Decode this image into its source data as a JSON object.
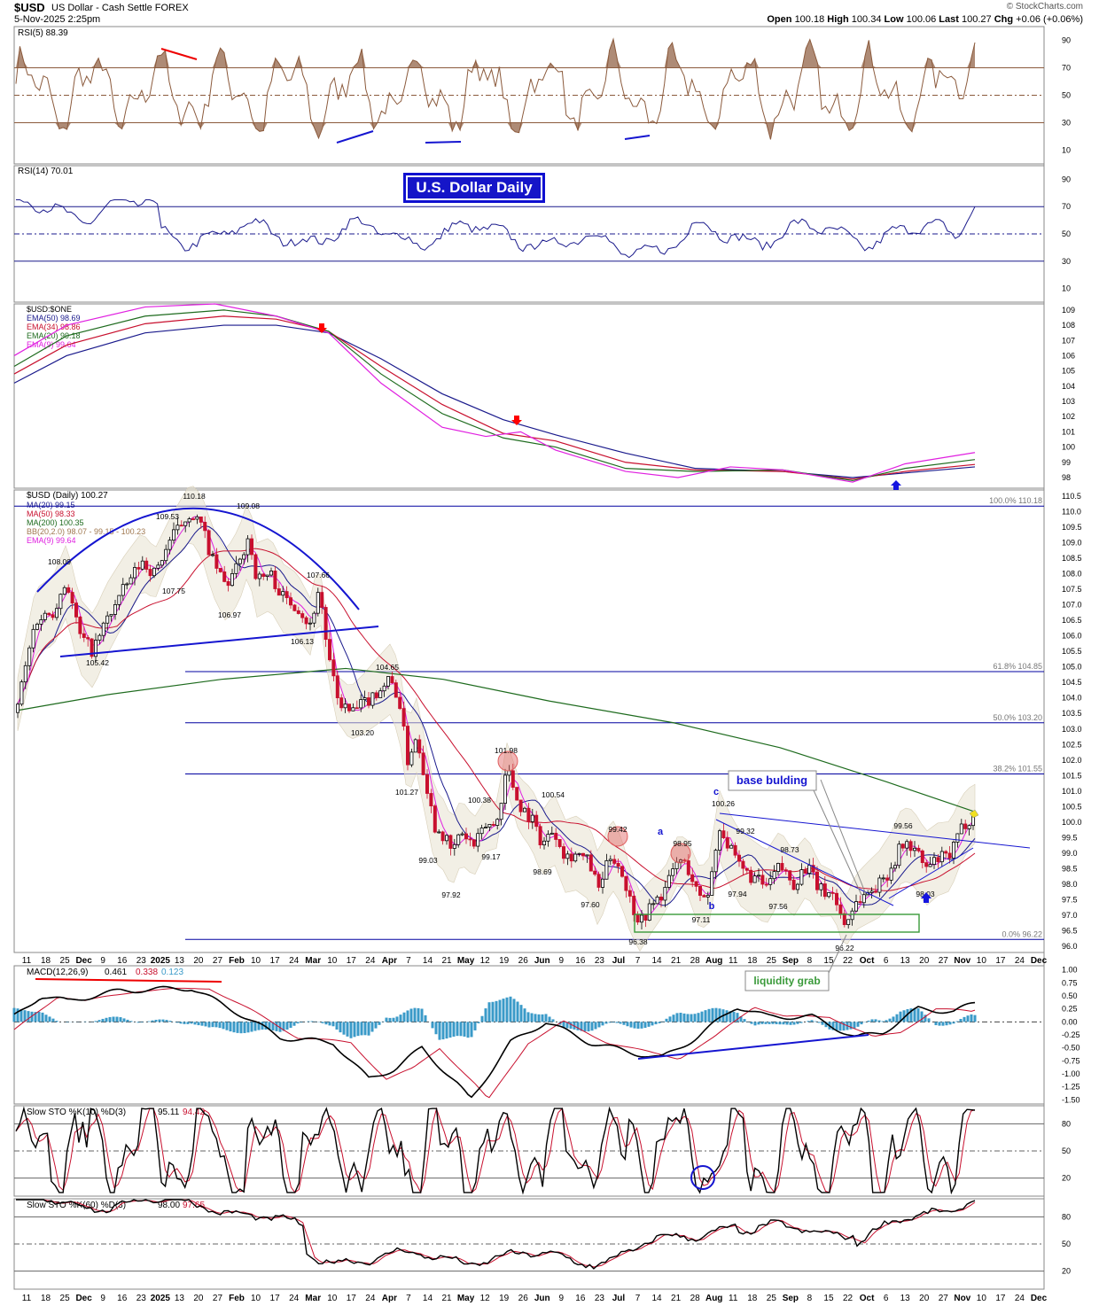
{
  "header": {
    "symbol": "$USD",
    "name": "US Dollar - Cash Settle",
    "exchange": "FOREX",
    "datetime": "5-Nov-2025 2:25pm",
    "brand": "© StockCharts.com",
    "ohlc": {
      "open_label": "Open",
      "open": "100.18",
      "high_label": "High",
      "high": "100.34",
      "low_label": "Low",
      "low": "100.06",
      "last_label": "Last",
      "last": "100.27",
      "chg_label": "Chg",
      "chg": "+0.06 (+0.06%)"
    }
  },
  "banner": "U.S. Dollar Daily",
  "colors": {
    "rsi5": "#8b5a3c",
    "rsi14": "#1a1a8c",
    "up": "#000000",
    "down": "#c8102e",
    "ma20": "#1a1a8c",
    "ma50": "#c8102e",
    "ma200": "#1e6b1e",
    "ema9": "#e020e0",
    "fib": "#0000a0",
    "macd_hist": "#3a9ac8"
  },
  "x_axis": [
    "11",
    "18",
    "25",
    "Dec",
    "9",
    "16",
    "23",
    "2025",
    "13",
    "20",
    "27",
    "Feb",
    "10",
    "17",
    "24",
    "Mar",
    "10",
    "17",
    "24",
    "Apr",
    "7",
    "14",
    "21",
    "May",
    "12",
    "19",
    "26",
    "Jun",
    "9",
    "16",
    "23",
    "Jul",
    "7",
    "14",
    "21",
    "28",
    "Aug",
    "11",
    "18",
    "25",
    "Sep",
    "8",
    "15",
    "22",
    "Oct",
    "6",
    "13",
    "20",
    "27",
    "Nov",
    "10",
    "17",
    "24",
    "Dec"
  ],
  "chart_data": [
    {
      "type": "line",
      "panel": "RSI(5)",
      "title": "RSI(5) 88.39",
      "yticks": [
        "90",
        "70",
        "50",
        "30",
        "10"
      ],
      "ylim": [
        0,
        100
      ],
      "levels": [
        70,
        50,
        30
      ],
      "series": [
        {
          "name": "RSI(5)",
          "last": 88.39
        }
      ]
    },
    {
      "type": "line",
      "panel": "RSI(14)",
      "title": "RSI(14) 70.01",
      "yticks": [
        "90",
        "70",
        "50",
        "30",
        "10"
      ],
      "ylim": [
        0,
        100
      ],
      "levels": [
        70,
        50,
        30
      ],
      "series": [
        {
          "name": "RSI(14)",
          "last": 70.01
        }
      ]
    },
    {
      "type": "line",
      "panel": "$USD:$ONE",
      "title": "$USD:$ONE",
      "yticks": [
        "109",
        "108",
        "107",
        "106",
        "105",
        "104",
        "103",
        "102",
        "101",
        "100",
        "99",
        "98"
      ],
      "ylim": [
        97.3,
        109.4
      ],
      "legend": [
        "EMA(50) 98.69",
        "EMA(34) 98.86",
        "EMA(20) 99.18",
        "EMA(9) 99.64"
      ],
      "series": [
        {
          "name": "EMA(50)",
          "points": [
            [
              0,
              104.2
            ],
            [
              60,
              106
            ],
            [
              150,
              107.5
            ],
            [
              240,
              108
            ],
            [
              300,
              108
            ],
            [
              360,
              107.5
            ],
            [
              420,
              105.8
            ],
            [
              490,
              103.5
            ],
            [
              560,
              101.8
            ],
            [
              620,
              100.8
            ],
            [
              700,
              99.6
            ],
            [
              780,
              98.6
            ],
            [
              880,
              98.4
            ],
            [
              960,
              98.0
            ],
            [
              1020,
              98.3
            ],
            [
              1100,
              98.7
            ]
          ]
        },
        {
          "name": "EMA(34)",
          "points": [
            [
              0,
              104.8
            ],
            [
              60,
              106.7
            ],
            [
              150,
              108.1
            ],
            [
              240,
              108.6
            ],
            [
              300,
              108.4
            ],
            [
              360,
              107.6
            ],
            [
              420,
              105.3
            ],
            [
              490,
              102.8
            ],
            [
              560,
              100.9
            ],
            [
              620,
              100.4
            ],
            [
              700,
              99.0
            ],
            [
              780,
              98.5
            ],
            [
              880,
              98.4
            ],
            [
              960,
              97.9
            ],
            [
              1020,
              98.4
            ],
            [
              1100,
              98.86
            ]
          ]
        },
        {
          "name": "EMA(20)",
          "points": [
            [
              0,
              105.3
            ],
            [
              60,
              107.3
            ],
            [
              150,
              108.6
            ],
            [
              240,
              109.0
            ],
            [
              300,
              108.6
            ],
            [
              360,
              107.6
            ],
            [
              420,
              104.8
            ],
            [
              490,
              102.2
            ],
            [
              560,
              100.6
            ],
            [
              620,
              100.0
            ],
            [
              700,
              98.6
            ],
            [
              780,
              98.4
            ],
            [
              880,
              98.5
            ],
            [
              960,
              97.8
            ],
            [
              1020,
              98.6
            ],
            [
              1100,
              99.18
            ]
          ]
        },
        {
          "name": "EMA(9)",
          "points": [
            [
              0,
              106.0
            ],
            [
              60,
              108.0
            ],
            [
              150,
              109.2
            ],
            [
              230,
              109.4
            ],
            [
              300,
              108.6
            ],
            [
              360,
              107.5
            ],
            [
              420,
              104.2
            ],
            [
              490,
              101.3
            ],
            [
              540,
              100.7
            ],
            [
              580,
              101.0
            ],
            [
              620,
              99.8
            ],
            [
              700,
              98.4
            ],
            [
              760,
              98.0
            ],
            [
              820,
              98.7
            ],
            [
              880,
              98.5
            ],
            [
              960,
              97.7
            ],
            [
              1020,
              98.9
            ],
            [
              1100,
              99.64
            ]
          ]
        }
      ],
      "markers": [
        "down",
        "down",
        "up"
      ]
    },
    {
      "type": "candlestick",
      "panel": "$USD (Daily)",
      "title": "$USD (Daily) 100.27",
      "legend": [
        "MA(20) 99.15",
        "MA(50) 98.33",
        "MA(200) 100.35",
        "BB(20,2.0) 98.07 - 99.15 - 100.23",
        "EMA(9) 99.64"
      ],
      "yticks": [
        "110.5",
        "110.0",
        "109.5",
        "109.0",
        "108.5",
        "108.0",
        "107.5",
        "107.0",
        "106.5",
        "106.0",
        "105.5",
        "105.0",
        "104.5",
        "104.0",
        "103.5",
        "103.0",
        "102.5",
        "102.0",
        "101.5",
        "101.0",
        "100.5",
        "100.0",
        "99.5",
        "99.0",
        "98.5",
        "98.0",
        "97.5",
        "97.0",
        "96.5",
        "96.0"
      ],
      "ylim": [
        95.8,
        110.7
      ],
      "fib_levels": [
        {
          "label": "100.0% 110.18",
          "value": 110.18
        },
        {
          "label": "61.8% 104.85",
          "value": 104.85
        },
        {
          "label": "50.0% 103.20",
          "value": 103.2
        },
        {
          "label": "38.2% 101.55",
          "value": 101.55
        },
        {
          "label": "0.0% 96.22",
          "value": 96.22
        }
      ],
      "price_labels": [
        "110.18",
        "109.53",
        "109.08",
        "108.09",
        "107.75",
        "106.97",
        "107.66",
        "106.13",
        "105.42",
        "104.65",
        "103.20",
        "101.98",
        "101.27",
        "100.38",
        "100.54",
        "99.03",
        "99.17",
        "97.92",
        "98.69",
        "97.60",
        "99.42",
        "98.95",
        "97.11",
        "96.38",
        "100.26",
        "99.32",
        "97.94",
        "98.73",
        "97.56",
        "99.56",
        "98.03",
        "96.22"
      ],
      "wave_labels": [
        "a",
        "b",
        "c"
      ],
      "annotations": [
        "base bulding",
        "liquidity grab"
      ],
      "close_path": [
        [
          20,
          103.8
        ],
        [
          40,
          106.5
        ],
        [
          60,
          106.8
        ],
        [
          75,
          107.8
        ],
        [
          90,
          106.0
        ],
        [
          105,
          105.5
        ],
        [
          120,
          106.5
        ],
        [
          140,
          107.5
        ],
        [
          160,
          108.4
        ],
        [
          175,
          108.0
        ],
        [
          190,
          109.0
        ],
        [
          205,
          109.6
        ],
        [
          215,
          110.0
        ],
        [
          228,
          109.5
        ],
        [
          240,
          108.4
        ],
        [
          255,
          107.6
        ],
        [
          270,
          108.3
        ],
        [
          280,
          109.2
        ],
        [
          290,
          107.8
        ],
        [
          305,
          108.0
        ],
        [
          320,
          107.2
        ],
        [
          335,
          107.0
        ],
        [
          350,
          106.3
        ],
        [
          360,
          107.6
        ],
        [
          370,
          105.4
        ],
        [
          380,
          104.0
        ],
        [
          395,
          103.5
        ],
        [
          410,
          103.8
        ],
        [
          425,
          104.2
        ],
        [
          440,
          104.6
        ],
        [
          450,
          104.0
        ],
        [
          460,
          102.0
        ],
        [
          470,
          102.8
        ],
        [
          480,
          101.4
        ],
        [
          490,
          99.9
        ],
        [
          500,
          99.6
        ],
        [
          510,
          99.0
        ],
        [
          520,
          99.7
        ],
        [
          535,
          99.2
        ],
        [
          548,
          99.9
        ],
        [
          560,
          99.9
        ],
        [
          572,
          101.8
        ],
        [
          585,
          100.6
        ],
        [
          600,
          100.1
        ],
        [
          612,
          99.3
        ],
        [
          625,
          99.8
        ],
        [
          638,
          98.9
        ],
        [
          650,
          99.0
        ],
        [
          665,
          98.7
        ],
        [
          675,
          97.8
        ],
        [
          690,
          99.0
        ],
        [
          700,
          98.5
        ],
        [
          712,
          97.4
        ],
        [
          722,
          96.8
        ],
        [
          735,
          97.3
        ],
        [
          750,
          97.8
        ],
        [
          765,
          98.8
        ],
        [
          775,
          98.6
        ],
        [
          790,
          97.5
        ],
        [
          800,
          97.8
        ],
        [
          812,
          99.9
        ],
        [
          822,
          99.2
        ],
        [
          835,
          98.5
        ],
        [
          850,
          98.2
        ],
        [
          865,
          97.9
        ],
        [
          880,
          98.6
        ],
        [
          895,
          98.0
        ],
        [
          910,
          98.6
        ],
        [
          925,
          97.8
        ],
        [
          940,
          97.7
        ],
        [
          953,
          96.7
        ],
        [
          965,
          97.4
        ],
        [
          978,
          97.7
        ],
        [
          992,
          98.0
        ],
        [
          1005,
          98.5
        ],
        [
          1018,
          99.3
        ],
        [
          1030,
          99.2
        ],
        [
          1045,
          98.5
        ],
        [
          1058,
          98.8
        ],
        [
          1072,
          98.9
        ],
        [
          1085,
          99.8
        ],
        [
          1098,
          100.27
        ]
      ],
      "last": 100.27
    },
    {
      "type": "line",
      "panel": "MACD",
      "title": "MACD(12,26,9) 0.461, 0.338, 0.123",
      "legend": [
        "0.461",
        "0.338",
        "0.123"
      ],
      "yticks": [
        "1.00",
        "0.75",
        "0.50",
        "0.25",
        "0.00",
        "-0.25",
        "-0.50",
        "-0.75",
        "-1.00",
        "-1.25",
        "-1.50"
      ],
      "ylim": [
        -1.58,
        1.08
      ],
      "series": [
        {
          "name": "MACD",
          "last": 0.461
        },
        {
          "name": "Signal",
          "last": 0.338
        },
        {
          "name": "Histogram",
          "last": 0.123
        }
      ]
    },
    {
      "type": "line",
      "panel": "Slow STO 10",
      "title": "Slow STO %K(10) %D(3) 95.11, 94.42",
      "legend": [
        "95.11",
        "94.42"
      ],
      "yticks": [
        "80",
        "50",
        "20"
      ],
      "ylim": [
        0,
        100
      ],
      "levels": [
        80,
        50,
        20
      ],
      "series": [
        {
          "name": "%K(10)",
          "last": 95.11
        },
        {
          "name": "%D(3)",
          "last": 94.42
        }
      ]
    },
    {
      "type": "line",
      "panel": "Slow STO 60",
      "title": "Slow STO %K(60) %D(3) 98.00, 97.65",
      "legend": [
        "98.00",
        "97.65"
      ],
      "yticks": [
        "80",
        "50",
        "20"
      ],
      "ylim": [
        0,
        100
      ],
      "levels": [
        80,
        50,
        20
      ],
      "series": [
        {
          "name": "%K(60)",
          "last": 98.0
        },
        {
          "name": "%D(3)",
          "last": 97.65
        }
      ]
    }
  ]
}
